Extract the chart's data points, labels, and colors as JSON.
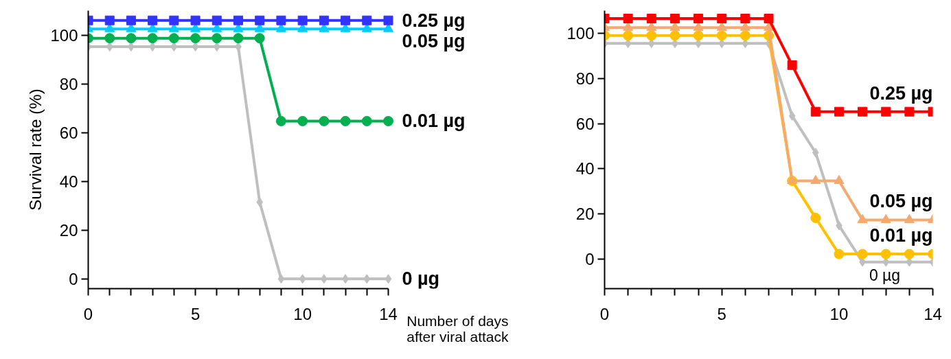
{
  "chart_data": [
    {
      "type": "line",
      "ylabel": "Survival rate (%)",
      "xlabel": "Number of days\nafter viral attack",
      "x": [
        0,
        1,
        2,
        3,
        4,
        5,
        6,
        7,
        8,
        9,
        10,
        11,
        12,
        13,
        14
      ],
      "xlim": [
        0,
        14
      ],
      "xticks": [
        0,
        {
          "value": 1,
          "label": null
        },
        {
          "value": 2,
          "label": null
        },
        {
          "value": 3,
          "label": null
        },
        {
          "value": 4,
          "label": null
        },
        5,
        {
          "value": 6,
          "label": null
        },
        {
          "value": 7,
          "label": null
        },
        {
          "value": 8,
          "label": null
        },
        {
          "value": 9,
          "label": null
        },
        10,
        {
          "value": 11,
          "label": null
        },
        {
          "value": 12,
          "label": null
        },
        {
          "value": 13,
          "label": null
        },
        14
      ],
      "ylim": [
        -4,
        110
      ],
      "yticks": [
        0,
        20,
        40,
        60,
        80,
        100
      ],
      "grid": false,
      "series": [
        {
          "name": "0 µg",
          "color": "#bfbfbf",
          "marker": "diamond",
          "values": [
            95.2,
            95.2,
            95.2,
            95.2,
            95.2,
            95.2,
            95.2,
            95.2,
            31.5,
            0,
            0,
            0,
            0,
            0,
            0
          ]
        },
        {
          "name": "0.01 µg",
          "color": "#00b050",
          "marker": "circle",
          "values": [
            98.7,
            98.7,
            98.7,
            98.7,
            98.7,
            98.7,
            98.7,
            98.7,
            98.7,
            64.7,
            64.7,
            64.7,
            64.7,
            64.7,
            64.7
          ]
        },
        {
          "name": "0.05 µg",
          "color": "#00ccff",
          "marker": "triangle",
          "values": [
            102.5,
            102.5,
            102.5,
            102.5,
            102.5,
            102.5,
            102.5,
            102.5,
            102.5,
            102.5,
            102.5,
            102.5,
            102.5,
            102.5,
            102.5
          ]
        },
        {
          "name": "0.25 µg",
          "color": "#3333ff",
          "marker": "square",
          "values": [
            106,
            106,
            106,
            106,
            106,
            106,
            106,
            106,
            106,
            106,
            106,
            106,
            106,
            106,
            106
          ]
        }
      ]
    },
    {
      "type": "line",
      "x": [
        0,
        1,
        2,
        3,
        4,
        5,
        6,
        7,
        8,
        9,
        10,
        11,
        12,
        13,
        14
      ],
      "xlim": [
        0,
        14
      ],
      "xticks": [
        0,
        {
          "value": 1,
          "label": null
        },
        {
          "value": 2,
          "label": null
        },
        {
          "value": 3,
          "label": null
        },
        {
          "value": 4,
          "label": null
        },
        5,
        {
          "value": 6,
          "label": null
        },
        {
          "value": 7,
          "label": null
        },
        {
          "value": 8,
          "label": null
        },
        {
          "value": 9,
          "label": null
        },
        10,
        {
          "value": 11,
          "label": null
        },
        {
          "value": 12,
          "label": null
        },
        {
          "value": 13,
          "label": null
        },
        14
      ],
      "ylim": [
        -13,
        110
      ],
      "yticks": [
        0,
        20,
        40,
        60,
        80,
        100
      ],
      "grid": false,
      "series": [
        {
          "name": "0 µg",
          "color": "#bfbfbf",
          "marker": "diamond",
          "values": [
            95.5,
            95.5,
            95.5,
            95.5,
            95.5,
            95.5,
            95.5,
            95.5,
            63.4,
            47.2,
            14.9,
            -1.2,
            -1.2,
            -1.2,
            -1.2
          ]
        },
        {
          "name": "0.01 µg",
          "color": "#ffc000",
          "marker": "circle",
          "values": [
            99,
            99,
            99,
            99,
            99,
            99,
            99,
            99,
            34.7,
            18.3,
            2.3,
            2.3,
            2.3,
            2.3,
            2.3
          ]
        },
        {
          "name": "0.05 µg",
          "color": "#f4a970",
          "marker": "triangle",
          "values": [
            102.5,
            102.5,
            102.5,
            102.5,
            102.5,
            102.5,
            102.5,
            102.5,
            34.7,
            34.7,
            34.7,
            17.4,
            17.4,
            17.4,
            17.4
          ]
        },
        {
          "name": "0.25 µg",
          "color": "#ff0000",
          "marker": "square",
          "values": [
            106.5,
            106.5,
            106.5,
            106.5,
            106.5,
            106.5,
            106.5,
            106.5,
            85.9,
            65.3,
            65.3,
            65.3,
            65.3,
            65.3,
            65.3
          ]
        }
      ]
    }
  ]
}
